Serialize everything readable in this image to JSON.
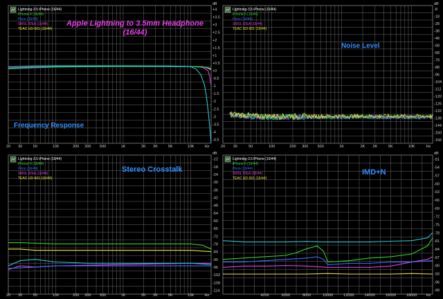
{
  "colors": {
    "background": "#000000",
    "grid": "#6b6b6b",
    "series": {
      "lightning": "#25c9d6",
      "iphone6": "#2ad62a",
      "pono": "#3b6cff",
      "smsl": "#e23ee6",
      "teac": "#e8e83a"
    },
    "title_magenta": "#e83ee8",
    "panel_label": "#2f8fff",
    "icon_bg": "#4a6a4a"
  },
  "headline": {
    "line1": "Apple Lightning to 3.5mm Headphone",
    "line2": "(16/44)"
  },
  "chart_data": [
    {
      "type": "line",
      "title": "Frequency Response",
      "x_scale": "log",
      "xlim": [
        20,
        20000
      ],
      "x_tick_labels": [
        "20",
        "30",
        "50",
        "100",
        "200",
        "300",
        "500",
        "1K",
        "2K",
        "3K",
        "5K",
        "10K",
        "Hz"
      ],
      "ylim": [
        -5,
        4
      ],
      "y_tick_labels": [
        "dB",
        "+4",
        "+3.5",
        "+3",
        "+2.5",
        "+2",
        "+1.5",
        "+1",
        "+0.5",
        "+0",
        "-0.5",
        "-1",
        "-1.5",
        "-2",
        "-2.5",
        "-3",
        "-3.5",
        "-4",
        "-4.5"
      ],
      "legend": [
        "Lightning-3.5 iPhone (16/44)",
        "iPhone 6 (16/44)",
        "Pono (16/44)",
        "SMSL iDEA (16/44)",
        "TEAC UD-501 (16/44)"
      ],
      "legend_position": "top-left",
      "series": [
        {
          "name": "Lightning-3.5 iPhone (16/44)",
          "color": "lightning",
          "x": [
            20,
            50,
            100,
            1000,
            5000,
            8000,
            10000,
            12000,
            14000,
            16000,
            17000,
            18000,
            19000,
            20000
          ],
          "y": [
            0.0,
            0.05,
            0.06,
            0.06,
            0.05,
            0.03,
            0.0,
            -0.15,
            -0.5,
            -1.2,
            -1.9,
            -2.8,
            -3.8,
            -5.0
          ]
        },
        {
          "name": "iPhone 6 (16/44)",
          "color": "iphone6",
          "x": [
            20,
            50,
            100,
            1000,
            10000,
            15000,
            18000,
            20000
          ],
          "y": [
            -0.12,
            -0.05,
            0.0,
            0.03,
            0.02,
            0.0,
            -0.06,
            -0.12
          ]
        },
        {
          "name": "Pono (16/44)",
          "color": "pono",
          "x": [
            20,
            50,
            100,
            1000,
            10000,
            15000,
            18000,
            20000
          ],
          "y": [
            -0.14,
            -0.07,
            -0.02,
            0.02,
            0.01,
            -0.02,
            -0.08,
            -0.15
          ]
        },
        {
          "name": "SMSL iDEA (16/44)",
          "color": "smsl",
          "x": [
            20,
            50,
            100,
            1000,
            10000,
            15000,
            18000,
            19000,
            20000
          ],
          "y": [
            -0.08,
            -0.02,
            0.01,
            0.03,
            0.02,
            -0.05,
            -0.25,
            -0.6,
            -1.2
          ]
        },
        {
          "name": "TEAC UD-501 (16/44)",
          "color": "teac",
          "x": [
            20,
            50,
            100,
            1000,
            10000,
            15000,
            18000,
            20000
          ],
          "y": [
            -0.1,
            -0.04,
            0.0,
            0.03,
            0.02,
            0.0,
            -0.1,
            -0.2
          ]
        }
      ]
    },
    {
      "type": "line",
      "title": "Noise Level",
      "x_scale": "log",
      "xlim": [
        20,
        20000
      ],
      "x_tick_labels": [
        "20",
        "30",
        "50",
        "100",
        "200",
        "300",
        "500",
        "1K",
        "2K",
        "3K",
        "5K",
        "10K",
        "Hz"
      ],
      "ylim": [
        -156,
        -4
      ],
      "y_tick_labels": [
        "dB",
        "-8",
        "-18",
        "-28",
        "-38",
        "-48",
        "-58",
        "-68",
        "-78",
        "-88",
        "-96",
        "-104",
        "-112",
        "-120",
        "-126",
        "-132",
        "-138",
        "-144",
        "-150",
        "-156"
      ],
      "legend": [
        "Lightning-3.5 iPhone (16/44)",
        "iPhone 6 (16/44)",
        "Pono (16/44)",
        "SMSL iDEA (16/44)",
        "TEAC UD-501 (16/44)"
      ],
      "legend_position": "top-left",
      "noise": {
        "start_hz": 25,
        "mean_db": -127,
        "spread_db": 7,
        "highlight_series": "teac"
      }
    },
    {
      "type": "line",
      "title": "Stereo Crosstalk",
      "x_scale": "log",
      "xlim": [
        20,
        20000
      ],
      "x_tick_labels": [
        "20",
        "30",
        "50",
        "100",
        "200",
        "300",
        "500",
        "1K",
        "2K",
        "3K",
        "5K",
        "10K",
        "Hz"
      ],
      "ylim": [
        -120,
        -12
      ],
      "y_tick_labels": [
        "dB",
        "-12",
        "-18",
        "-24",
        "-30",
        "-36",
        "-42",
        "-48",
        "-54",
        "-60",
        "-66",
        "-72",
        "-78",
        "-84",
        "-90",
        "-96",
        "-102",
        "-108",
        "-114"
      ],
      "legend": [
        "Lightning-3.5 iPhone (16/44)",
        "iPhone 6 (16/44)",
        "Pono (16/44)",
        "SMSL iDEA (16/44)",
        "TEAC UD-501 (16/44)"
      ],
      "legend_position": "top-left",
      "series": [
        {
          "name": "Lightning-3.5 iPhone (16/44)",
          "color": "lightning",
          "x": [
            20,
            30,
            50,
            100,
            300,
            1000,
            3000,
            10000,
            20000
          ],
          "y": [
            -98,
            -94,
            -93,
            -95,
            -96,
            -96,
            -96,
            -96,
            -97
          ]
        },
        {
          "name": "iPhone 6 (16/44)",
          "color": "iphone6",
          "x": [
            20,
            30,
            100,
            1000,
            5000,
            10000,
            15000,
            20000
          ],
          "y": [
            -80,
            -80,
            -81,
            -81,
            -81,
            -81,
            -82,
            -85
          ]
        },
        {
          "name": "Pono (16/44)",
          "color": "pono",
          "x": [
            20,
            50,
            100,
            1000,
            5000,
            10000,
            20000
          ],
          "y": [
            -100,
            -99,
            -98,
            -98,
            -98,
            -98,
            -98
          ]
        },
        {
          "name": "SMSL iDEA (16/44)",
          "color": "smsl",
          "x": [
            20,
            30,
            50,
            100,
            1000,
            10000,
            20000
          ],
          "y": [
            -101,
            -98,
            -99,
            -98,
            -97,
            -96,
            -96
          ]
        },
        {
          "name": "TEAC UD-501 (16/44)",
          "color": "teac",
          "x": [
            20,
            30,
            50,
            100,
            1000,
            10000,
            20000
          ],
          "y": [
            -85,
            -85,
            -86,
            -86,
            -86,
            -86,
            -87
          ]
        }
      ]
    },
    {
      "type": "line",
      "title": "IMD+N",
      "x_scale": "linear",
      "xlim": [
        0,
        20000
      ],
      "x_tick_labels": [
        "4000",
        "6000",
        "8000",
        "10000",
        "12000",
        "14000",
        "16000",
        "18000",
        "Hz"
      ],
      "x_tick_values": [
        4000,
        6000,
        8000,
        10000,
        12000,
        14000,
        16000,
        18000
      ],
      "ylim": [
        -100,
        -48
      ],
      "y_tick_labels": [
        "dB",
        "-51",
        "-54",
        "-57",
        "-60",
        "-63",
        "-66",
        "-69",
        "-72",
        "-75",
        "-78",
        "-81",
        "-84",
        "-87",
        "-90",
        "-93",
        "-96",
        "-99"
      ],
      "legend": [
        "Lightning-3.5 iPhone (16/44)",
        "iPhone 6 (16/44)",
        "Pono (16/44)",
        "SMSL iDEA (16/44)",
        "TEAC UD-501 (16/44)"
      ],
      "legend_position": "top-left",
      "series": [
        {
          "name": "Lightning-3.5 iPhone (16/44)",
          "color": "lightning",
          "x": [
            0,
            2000,
            4000,
            6000,
            8000,
            9500,
            10000,
            12000,
            14000,
            16000,
            18000,
            19500,
            20000
          ],
          "y": [
            -80,
            -80.5,
            -80.5,
            -80.5,
            -80.3,
            -80.5,
            -80.5,
            -80.5,
            -80.5,
            -80.2,
            -80,
            -79,
            -77
          ]
        },
        {
          "name": "iPhone 6 (16/44)",
          "color": "iphone6",
          "x": [
            0,
            2000,
            4000,
            6000,
            7000,
            8000,
            9000,
            9600,
            10000,
            12000,
            14000,
            16000,
            18000,
            19500,
            20000
          ],
          "y": [
            -87,
            -86.5,
            -86,
            -85.5,
            -84.5,
            -83,
            -82,
            -84,
            -88,
            -87.5,
            -86.5,
            -86,
            -85,
            -82,
            -79
          ]
        },
        {
          "name": "Pono (16/44)",
          "color": "pono",
          "x": [
            0,
            2000,
            4000,
            6000,
            8000,
            9000,
            9600,
            10000,
            12000,
            14000,
            16000,
            18000,
            20000
          ],
          "y": [
            -88,
            -88,
            -87.5,
            -87,
            -86.5,
            -86,
            -87,
            -89,
            -88.5,
            -88.5,
            -88,
            -88,
            -87.5
          ]
        },
        {
          "name": "SMSL iDEA (16/44)",
          "color": "smsl",
          "x": [
            0,
            2000,
            4000,
            6000,
            8000,
            10000,
            12000,
            14000,
            16000,
            18000,
            19500,
            20000
          ],
          "y": [
            -90,
            -89.5,
            -89.5,
            -89.3,
            -89.5,
            -90,
            -90,
            -90,
            -89.5,
            -88,
            -87,
            -86
          ]
        },
        {
          "name": "TEAC UD-501 (16/44)",
          "color": "teac",
          "x": [
            0,
            2000,
            4000,
            6000,
            8000,
            10000,
            12000,
            14000,
            16000,
            18000,
            20000
          ],
          "y": [
            -92.5,
            -92.5,
            -92.5,
            -92.5,
            -92.5,
            -92.3,
            -92.5,
            -92.5,
            -92.5,
            -92.3,
            -92.5
          ]
        }
      ]
    }
  ]
}
